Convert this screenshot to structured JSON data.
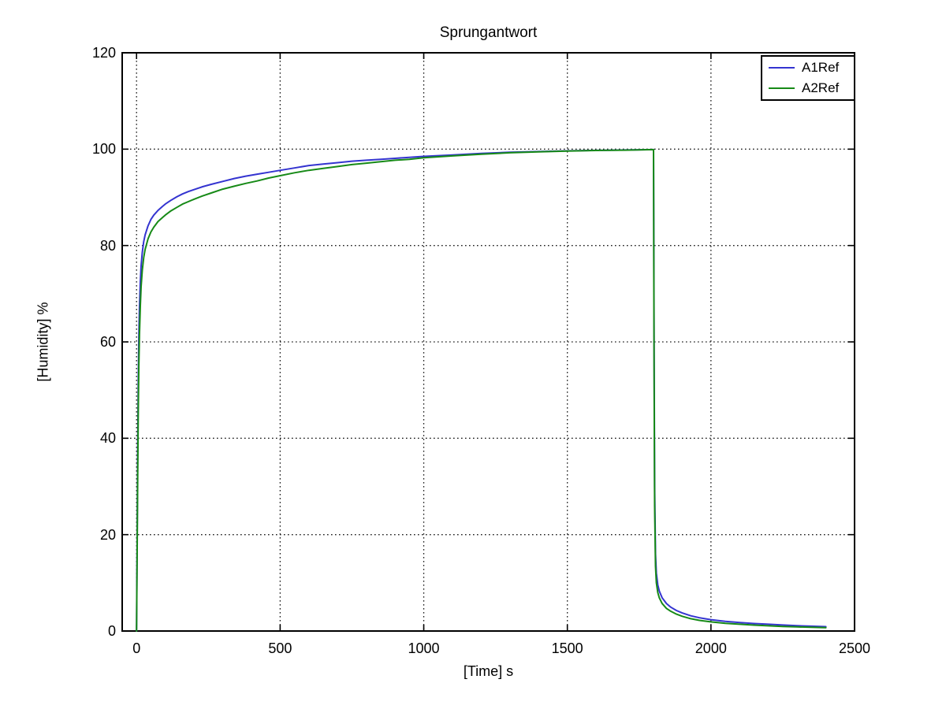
{
  "chart_data": {
    "type": "line",
    "title": "Sprungantwort",
    "xlabel": "[Time] s",
    "ylabel": "[Humidity] %",
    "xlim": [
      -50,
      2500
    ],
    "ylim": [
      0,
      120
    ],
    "xticks": [
      0,
      500,
      1000,
      1500,
      2000,
      2500
    ],
    "yticks": [
      0,
      20,
      40,
      60,
      80,
      100,
      120
    ],
    "grid": true,
    "grid_style": "dotted",
    "grid_color": "#1a1a1a",
    "axis_color": "#000000",
    "background_color": "#ffffff",
    "legend_position": "top-right-inside",
    "series": [
      {
        "name": "A1Ref",
        "color": "#3434d0",
        "points": [
          [
            0,
            0
          ],
          [
            2,
            18
          ],
          [
            4,
            38
          ],
          [
            6,
            52
          ],
          [
            8,
            61
          ],
          [
            10,
            67
          ],
          [
            13,
            72.5
          ],
          [
            16,
            75.8
          ],
          [
            20,
            78.6
          ],
          [
            25,
            80.8
          ],
          [
            30,
            82.2
          ],
          [
            40,
            84.1
          ],
          [
            50,
            85.4
          ],
          [
            60,
            86.3
          ],
          [
            75,
            87.3
          ],
          [
            90,
            88.1
          ],
          [
            100,
            88.6
          ],
          [
            120,
            89.4
          ],
          [
            140,
            90.1
          ],
          [
            160,
            90.7
          ],
          [
            180,
            91.2
          ],
          [
            200,
            91.6
          ],
          [
            230,
            92.2
          ],
          [
            260,
            92.7
          ],
          [
            300,
            93.3
          ],
          [
            340,
            93.9
          ],
          [
            380,
            94.4
          ],
          [
            420,
            94.8
          ],
          [
            460,
            95.2
          ],
          [
            500,
            95.6
          ],
          [
            550,
            96.1
          ],
          [
            600,
            96.6
          ],
          [
            650,
            96.9
          ],
          [
            700,
            97.2
          ],
          [
            750,
            97.5
          ],
          [
            800,
            97.7
          ],
          [
            850,
            97.9
          ],
          [
            900,
            98.1
          ],
          [
            950,
            98.3
          ],
          [
            1000,
            98.5
          ],
          [
            1100,
            98.8
          ],
          [
            1200,
            99.1
          ],
          [
            1300,
            99.35
          ],
          [
            1400,
            99.5
          ],
          [
            1500,
            99.65
          ],
          [
            1600,
            99.75
          ],
          [
            1700,
            99.82
          ],
          [
            1800,
            99.9
          ],
          [
            1801,
            85
          ],
          [
            1802,
            60
          ],
          [
            1804,
            30
          ],
          [
            1807,
            16
          ],
          [
            1810,
            12
          ],
          [
            1815,
            9.6
          ],
          [
            1820,
            8.3
          ],
          [
            1830,
            6.9
          ],
          [
            1845,
            5.7
          ],
          [
            1860,
            4.95
          ],
          [
            1880,
            4.25
          ],
          [
            1900,
            3.75
          ],
          [
            1930,
            3.15
          ],
          [
            1960,
            2.75
          ],
          [
            2000,
            2.35
          ],
          [
            2050,
            2.0
          ],
          [
            2100,
            1.75
          ],
          [
            2150,
            1.55
          ],
          [
            2200,
            1.4
          ],
          [
            2250,
            1.25
          ],
          [
            2300,
            1.1
          ],
          [
            2350,
            1.0
          ],
          [
            2400,
            0.9
          ]
        ]
      },
      {
        "name": "A2Ref",
        "color": "#178a17",
        "points": [
          [
            0,
            0
          ],
          [
            2,
            15
          ],
          [
            4,
            33
          ],
          [
            6,
            46
          ],
          [
            8,
            55
          ],
          [
            10,
            61.5
          ],
          [
            13,
            67.5
          ],
          [
            16,
            71.5
          ],
          [
            20,
            74.9
          ],
          [
            25,
            77.5
          ],
          [
            30,
            79.2
          ],
          [
            40,
            81.4
          ],
          [
            50,
            82.8
          ],
          [
            60,
            83.8
          ],
          [
            75,
            85.0
          ],
          [
            90,
            85.8
          ],
          [
            100,
            86.3
          ],
          [
            120,
            87.2
          ],
          [
            140,
            87.9
          ],
          [
            160,
            88.6
          ],
          [
            180,
            89.1
          ],
          [
            200,
            89.6
          ],
          [
            230,
            90.3
          ],
          [
            260,
            90.9
          ],
          [
            300,
            91.7
          ],
          [
            340,
            92.3
          ],
          [
            380,
            92.9
          ],
          [
            420,
            93.4
          ],
          [
            460,
            94.0
          ],
          [
            500,
            94.5
          ],
          [
            550,
            95.1
          ],
          [
            600,
            95.6
          ],
          [
            650,
            96.0
          ],
          [
            700,
            96.4
          ],
          [
            750,
            96.8
          ],
          [
            800,
            97.1
          ],
          [
            850,
            97.4
          ],
          [
            900,
            97.7
          ],
          [
            950,
            97.9
          ],
          [
            1000,
            98.2
          ],
          [
            1100,
            98.6
          ],
          [
            1200,
            98.95
          ],
          [
            1300,
            99.25
          ],
          [
            1400,
            99.45
          ],
          [
            1500,
            99.6
          ],
          [
            1600,
            99.72
          ],
          [
            1700,
            99.8
          ],
          [
            1800,
            99.9
          ],
          [
            1801,
            80
          ],
          [
            1802,
            55
          ],
          [
            1804,
            26
          ],
          [
            1807,
            13.5
          ],
          [
            1810,
            10
          ],
          [
            1815,
            8
          ],
          [
            1820,
            6.9
          ],
          [
            1830,
            5.7
          ],
          [
            1845,
            4.7
          ],
          [
            1860,
            4.1
          ],
          [
            1880,
            3.5
          ],
          [
            1900,
            3.05
          ],
          [
            1930,
            2.55
          ],
          [
            1960,
            2.2
          ],
          [
            2000,
            1.9
          ],
          [
            2050,
            1.6
          ],
          [
            2100,
            1.4
          ],
          [
            2150,
            1.22
          ],
          [
            2200,
            1.08
          ],
          [
            2250,
            0.95
          ],
          [
            2300,
            0.85
          ],
          [
            2350,
            0.77
          ],
          [
            2400,
            0.7
          ]
        ]
      }
    ]
  }
}
